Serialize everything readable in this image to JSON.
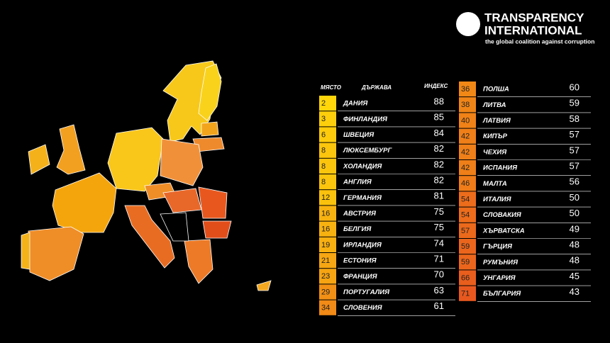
{
  "logo": {
    "line1": "TRANSPARENCY",
    "line2": "INTERNATIONAL",
    "tagline": "the global coalition against corruption"
  },
  "table": {
    "header": [
      "МЯСТО",
      "ДЪРЖАВА",
      "ИНДЕКС"
    ],
    "columns": [
      {
        "rows": [
          [
            2,
            "ДАНИЯ",
            88
          ],
          [
            3,
            "ФИНЛАНДИЯ",
            85
          ],
          [
            6,
            "ШВЕЦИЯ",
            84
          ],
          [
            8,
            "ЛЮКСЕМБУРГ",
            82
          ],
          [
            8,
            "ХОЛАНДИЯ",
            82
          ],
          [
            8,
            "АНГЛИЯ",
            82
          ],
          [
            12,
            "ГЕРМАНИЯ",
            81
          ],
          [
            16,
            "АВСТРИЯ",
            75
          ],
          [
            16,
            "БЕЛГИЯ",
            75
          ],
          [
            19,
            "ИРЛАНДИЯ",
            74
          ],
          [
            21,
            "ЕСТОНИЯ",
            71
          ],
          [
            23,
            "ФРАНЦИЯ",
            70
          ],
          [
            29,
            "ПОРТУГАЛИЯ",
            63
          ],
          [
            34,
            "СЛОВЕНИЯ",
            61
          ]
        ]
      },
      {
        "rows": [
          [
            36,
            "ПОЛША",
            60
          ],
          [
            38,
            "ЛИТВА",
            59
          ],
          [
            40,
            "ЛАТВИЯ",
            58
          ],
          [
            42,
            "КИПЪР",
            57
          ],
          [
            42,
            "ЧЕХИЯ",
            57
          ],
          [
            42,
            "ИСПАНИЯ",
            57
          ],
          [
            46,
            "МАЛТА",
            56
          ],
          [
            54,
            "ИТАЛИЯ",
            50
          ],
          [
            54,
            "СЛОВАКИЯ",
            50
          ],
          [
            57,
            "ХЪРВАТСКА",
            49
          ],
          [
            59,
            "ГЪРЦИЯ",
            48
          ],
          [
            59,
            "РУМЪНИЯ",
            48
          ],
          [
            66,
            "УНГАРИЯ",
            45
          ],
          [
            71,
            "БЪЛГАРИЯ",
            43
          ]
        ]
      }
    ]
  }
}
